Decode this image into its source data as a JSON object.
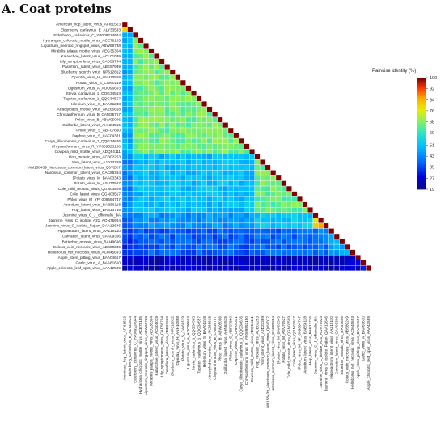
{
  "title": "A. Coat proteins",
  "chart_data": {
    "type": "heatmap",
    "title": "A. Coat proteins",
    "legend_title": "Pairwise identity (%)",
    "legend_ticks": [
      100,
      92,
      84,
      76,
      68,
      60,
      51,
      43,
      35,
      27,
      19
    ],
    "value_range": [
      19,
      100
    ],
    "labels": [
      "American_hop_latent_virus_AFI61523",
      "Elderberry_carlavirus_E_ALY33533",
      "Elderberry_carlavirus_C_YP009224944",
      "Hydrangea_chlorotic_mottle_virus_ACE78185",
      "Ligustrum_necrotic_ringspot_virus_ABW69738",
      "Mirabilis_jalapa_mottle_virus_AEG35304",
      "Kalanchoe_latent_virus_ACL01039",
      "Lily_symptomless_virus_CAD56794",
      "Passiflora_latent_virus_ABE97939",
      "Blueberry_scorch_virus_NP612812",
      "Opuntia_virus_H_ANH10858",
      "Potato_virus_S_CAI60119",
      "Ligustrum_virus_A_AOO96603",
      "Stevia_carlavirus_1_QQG34563",
      "Tagetes_carlavirus_1_QQG34557",
      "Helenium_virus_S_BAA01248",
      "Atractylodes_mottle_virus_AKZ66618",
      "Chrysanthemum_virus_B_CAM35757",
      "Phlox_virus_B_ABW05096",
      "Gaillardia_latent_virus_AHN84515",
      "Phlox_virus_S_ABF07860",
      "Daphne_virus_S_CAF04331",
      "Carya_illinoinensis_carlavirus_1_QQG34676",
      "Chrysanthemum_virus_R_YP009553180",
      "Cowpea_mild_mottle_virus_ADQ54111",
      "Hop_mosaic_virus_ACB02253",
      "Yam_latent_virus_AJD23369",
      "AM158439_Narcissus_common_latent_virus_Q0VZC7",
      "Narcissus_common_latent_virus_CAC85384",
      "[Potato_virus_M_BAA03343",
      "Potato_virus_M_ASV70527",
      "Cole_mild_mosaic_virus_QGN03509",
      "Cole_latent_virus_QGN03517",
      "Phlox_virus_M_YP_009664747",
      "Aconitum_latent_virus_BAB56118",
      "Hop_latent_virus_BAB13716",
      "Jasmine_virus_C_J_officinalis_BA",
      "Jasmine_virus_C_isolate_A31_AON75924",
      "Jasmine_virus_C_isolate_Fujian_QAA12646",
      "Hippeastrum_latent_virus_AAZ15110",
      "Carnation_latent_virus_CAA09306",
      "Butterbur_mosaic_virus_BAI49696",
      "Coleus_vein_necrosis_virus_ABS89249",
      "Helleborus_net_necrosis_virus_ACM45693",
      "Apple_stem_pitting_virus_BAA04657",
      "Garlic_virus_A_BAA81610",
      "Apple_chlorotic_leaf_spot_virus_AAA42589"
    ],
    "groups": [
      0,
      0,
      1,
      1,
      1,
      1,
      1,
      1,
      1,
      1,
      1,
      1,
      1,
      1,
      1,
      1,
      1,
      1,
      1,
      1,
      1,
      1,
      1,
      1,
      1,
      2,
      2,
      2,
      2,
      2,
      2,
      2,
      2,
      2,
      2,
      2,
      3,
      3,
      3,
      4,
      4,
      4,
      4,
      4,
      5,
      5,
      5
    ],
    "group_similarity": [
      [
        80,
        48,
        43,
        38,
        33,
        24
      ],
      [
        48,
        66,
        50,
        44,
        37,
        24
      ],
      [
        43,
        50,
        65,
        52,
        38,
        24
      ],
      [
        38,
        44,
        52,
        82,
        40,
        24
      ],
      [
        33,
        37,
        38,
        40,
        48,
        24
      ],
      [
        24,
        24,
        24,
        24,
        24,
        27
      ]
    ],
    "diagonal_value": 100
  }
}
